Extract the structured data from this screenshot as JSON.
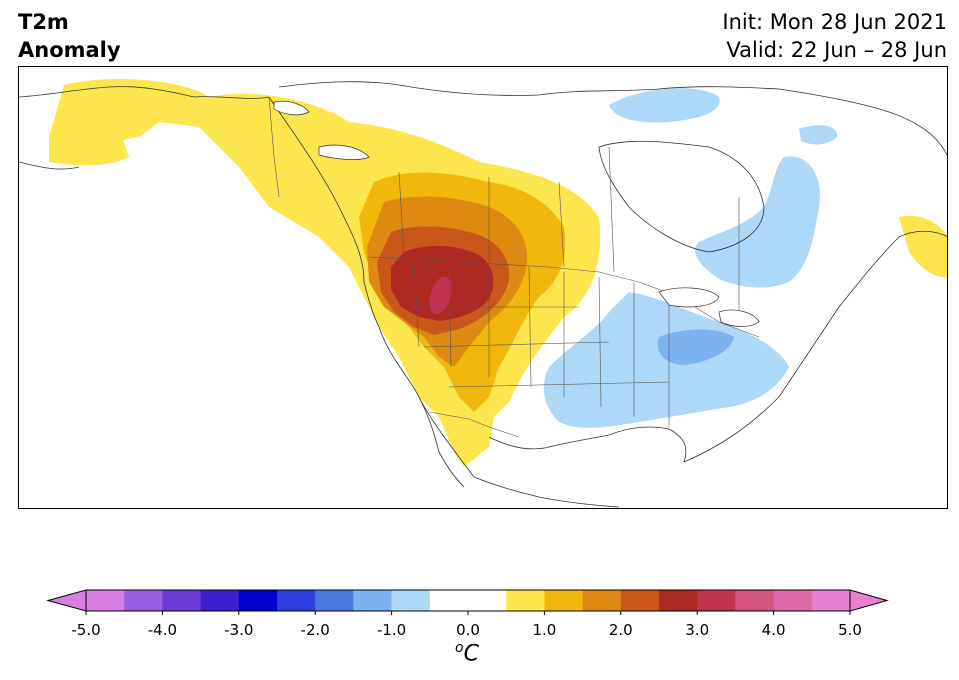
{
  "header": {
    "variable": "T2m",
    "subtitle": "Anomaly",
    "init": "Init: Mon 28 Jun 2021",
    "valid": "Valid: 22 Jun – 28 Jun"
  },
  "colorbar": {
    "ticks": [
      "-5.0",
      "-4.0",
      "-3.0",
      "-2.0",
      "-1.0",
      "0.0",
      "1.0",
      "2.0",
      "3.0",
      "4.0",
      "5.0"
    ],
    "unit_sup": "o",
    "unit": "C",
    "colors": [
      "#d77ee0",
      "#9b5ddf",
      "#6a3bd6",
      "#3b1fcf",
      "#0000cc",
      "#2a3fdc",
      "#4a78e2",
      "#7ab3ef",
      "#add8f8",
      "#ffffff",
      "#ffffff",
      "#fde54e",
      "#f1b70c",
      "#de8a12",
      "#c9571a",
      "#ad2a23",
      "#c13350",
      "#d2557d",
      "#dd6aa8",
      "#e77fd3"
    ],
    "under_color": "#d77ee0",
    "over_color": "#e77fd3"
  },
  "map": {
    "region": "North America",
    "warm_colors": {
      "a0_5": "#fde54e",
      "a1": "#f1b70c",
      "a2": "#de8a12",
      "a2_5": "#c9571a",
      "a3": "#ad2a23",
      "a4": "#c13350"
    },
    "cool_colors": {
      "a_1": "#add8f8",
      "a_1_5": "#7ab3ef"
    }
  }
}
